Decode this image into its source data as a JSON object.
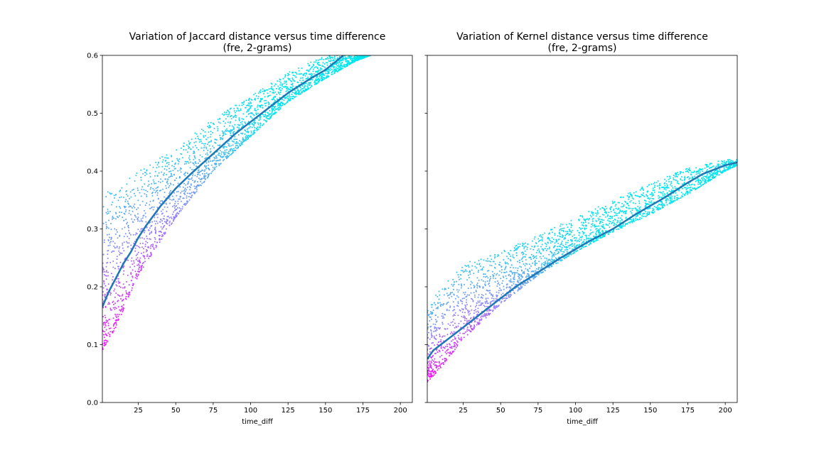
{
  "chart_data": [
    {
      "type": "scatter",
      "title": "Variation of Jaccard distance versus time difference",
      "subtitle": "(fre, 2-grams)",
      "xlabel": "time_diff",
      "ylabel": "",
      "xlim": [
        1,
        208
      ],
      "ylim": [
        0.0,
        0.6
      ],
      "xticks": [
        25,
        50,
        75,
        100,
        125,
        150,
        175,
        200
      ],
      "yticks": [
        0.0,
        0.1,
        0.2,
        0.3,
        0.4,
        0.5,
        0.6
      ],
      "ytick_labels": [
        "0.0",
        "0.1",
        "0.2",
        "0.3",
        "0.4",
        "0.5",
        "0.6"
      ],
      "grid": false,
      "colormap": [
        "#00e5ee",
        "#8a8cf5",
        "#ff00ff"
      ],
      "series": [
        {
          "kind": "scatter-band",
          "color_scale": "cool",
          "x": [
            1,
            10,
            25,
            50,
            75,
            100,
            125,
            150,
            170,
            180
          ],
          "lower": [
            0.09,
            0.13,
            0.22,
            0.32,
            0.4,
            0.46,
            0.52,
            0.56,
            0.59,
            0.6
          ],
          "upper": [
            0.36,
            0.37,
            0.4,
            0.44,
            0.49,
            0.53,
            0.57,
            0.6,
            0.6,
            0.6
          ]
        },
        {
          "kind": "line",
          "color": "#1f77b4",
          "x": [
            1,
            5,
            10,
            15,
            20,
            25,
            30,
            40,
            50,
            60,
            75,
            90,
            100,
            110,
            125,
            140,
            150,
            162
          ],
          "y": [
            0.165,
            0.19,
            0.215,
            0.24,
            0.26,
            0.285,
            0.305,
            0.34,
            0.37,
            0.395,
            0.43,
            0.465,
            0.485,
            0.505,
            0.535,
            0.56,
            0.575,
            0.6
          ]
        }
      ]
    },
    {
      "type": "scatter",
      "title": "Variation of Kernel distance versus time difference",
      "subtitle": "(fre, 2-grams)",
      "xlabel": "time_diff",
      "ylabel": "",
      "xlim": [
        1,
        208
      ],
      "ylim": [
        0.0,
        0.6
      ],
      "xticks": [
        25,
        50,
        75,
        100,
        125,
        150,
        175,
        200
      ],
      "yticks": [
        0.0,
        0.1,
        0.2,
        0.3,
        0.4,
        0.5,
        0.6
      ],
      "ytick_labels": [],
      "grid": false,
      "colormap": [
        "#00e5ee",
        "#8a8cf5",
        "#ff00ff"
      ],
      "series": [
        {
          "kind": "scatter-band",
          "color_scale": "cool",
          "x": [
            1,
            10,
            25,
            50,
            75,
            100,
            125,
            150,
            175,
            200,
            208
          ],
          "lower": [
            0.035,
            0.06,
            0.11,
            0.17,
            0.22,
            0.26,
            0.295,
            0.325,
            0.36,
            0.4,
            0.41
          ],
          "upper": [
            0.16,
            0.2,
            0.24,
            0.26,
            0.29,
            0.32,
            0.35,
            0.38,
            0.405,
            0.42,
            0.42
          ]
        },
        {
          "kind": "line",
          "color": "#1f77b4",
          "x": [
            1,
            5,
            10,
            15,
            25,
            40,
            50,
            60,
            75,
            90,
            100,
            110,
            125,
            140,
            150,
            160,
            175,
            185,
            200,
            208
          ],
          "y": [
            0.075,
            0.09,
            0.1,
            0.11,
            0.13,
            0.16,
            0.18,
            0.2,
            0.225,
            0.25,
            0.265,
            0.28,
            0.3,
            0.325,
            0.34,
            0.355,
            0.38,
            0.395,
            0.41,
            0.415
          ]
        }
      ]
    }
  ]
}
